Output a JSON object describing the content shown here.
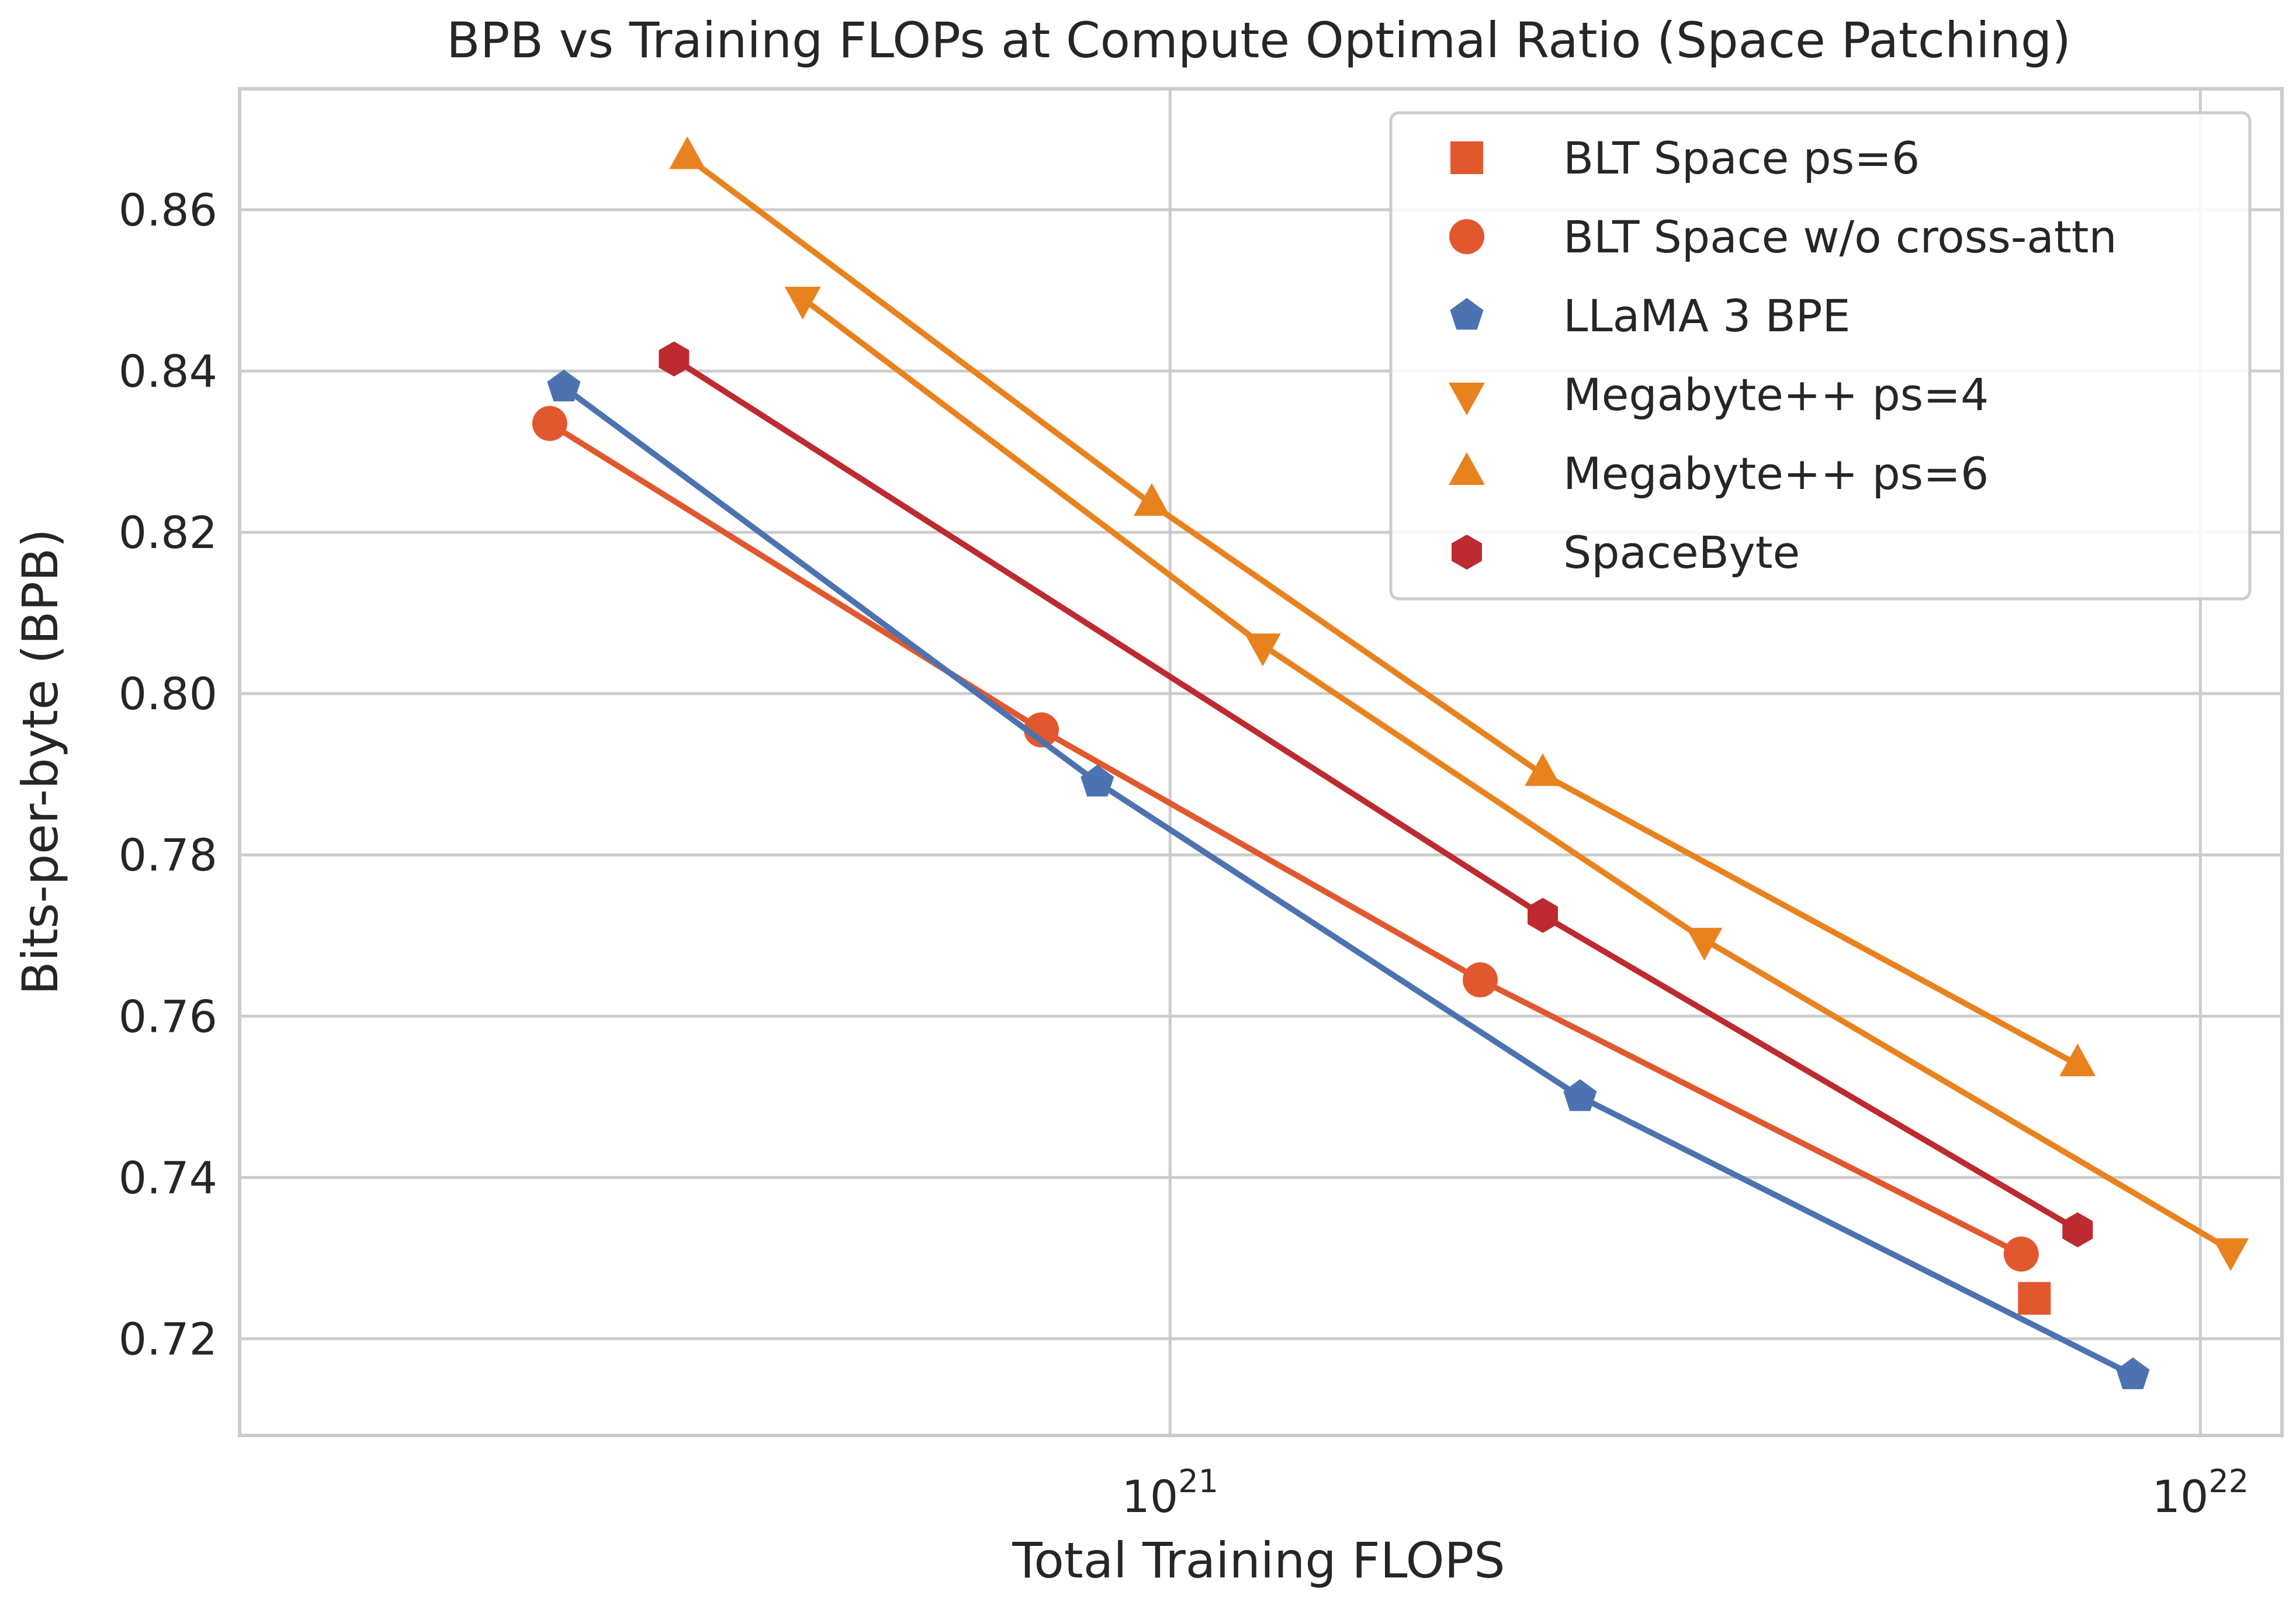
{
  "chart_data": {
    "type": "line",
    "title": "BPB vs Training FLOPs at Compute Optimal Ratio (Space Patching)",
    "xlabel": "Total Training FLOPS",
    "ylabel": "Bits-per-byte (BPB)",
    "xscale": "log",
    "xlim": [
      1.25e+20,
      1.2e+22
    ],
    "ylim": [
      0.708,
      0.875
    ],
    "grid": true,
    "legend_position": "top-right",
    "x_ticks": [
      {
        "value": 1e+21,
        "base": "10",
        "exp": "21"
      },
      {
        "value": 1e+22,
        "base": "10",
        "exp": "22"
      }
    ],
    "y_ticks": [
      {
        "value": 0.72,
        "label": "0.72"
      },
      {
        "value": 0.74,
        "label": "0.74"
      },
      {
        "value": 0.76,
        "label": "0.76"
      },
      {
        "value": 0.78,
        "label": "0.78"
      },
      {
        "value": 0.8,
        "label": "0.80"
      },
      {
        "value": 0.82,
        "label": "0.82"
      },
      {
        "value": 0.84,
        "label": "0.84"
      },
      {
        "value": 0.86,
        "label": "0.86"
      }
    ],
    "series": [
      {
        "name": "BLT Space ps=6",
        "color": "#e1582f",
        "marker": "square",
        "line": false,
        "x": [
          6.9e+21
        ],
        "y": [
          0.725
        ]
      },
      {
        "name": "BLT Space w/o cross-attn",
        "color": "#e1582f",
        "marker": "circle",
        "line": true,
        "x": [
          2.5e+20,
          7.5e+20,
          2e+21,
          6.7e+21
        ],
        "y": [
          0.8335,
          0.7955,
          0.7645,
          0.7305
        ]
      },
      {
        "name": "LLaMA 3 BPE",
        "color": "#4c72b0",
        "marker": "pentagon",
        "line": true,
        "x": [
          2.58e+20,
          8.5e+20,
          2.5e+21,
          8.6e+21
        ],
        "y": [
          0.838,
          0.789,
          0.75,
          0.7155
        ]
      },
      {
        "name": "Megabyte++ ps=4",
        "color": "#e8821e",
        "marker": "triangle-down",
        "line": true,
        "x": [
          4.4e+20,
          1.23e+21,
          3.3e+21,
          1.07e+22
        ],
        "y": [
          0.849,
          0.806,
          0.7695,
          0.731
        ]
      },
      {
        "name": "Megabyte++ ps=6",
        "color": "#e8821e",
        "marker": "triangle-up",
        "line": true,
        "x": [
          3.4e+20,
          9.6e+20,
          2.3e+21,
          7.6e+21
        ],
        "y": [
          0.8665,
          0.8235,
          0.79,
          0.754
        ]
      },
      {
        "name": "SpaceByte",
        "color": "#bd2a30",
        "marker": "hexagon",
        "line": true,
        "x": [
          3.3e+20,
          2.3e+21,
          7.6e+21
        ],
        "y": [
          0.8415,
          0.7725,
          0.7335
        ]
      }
    ]
  }
}
